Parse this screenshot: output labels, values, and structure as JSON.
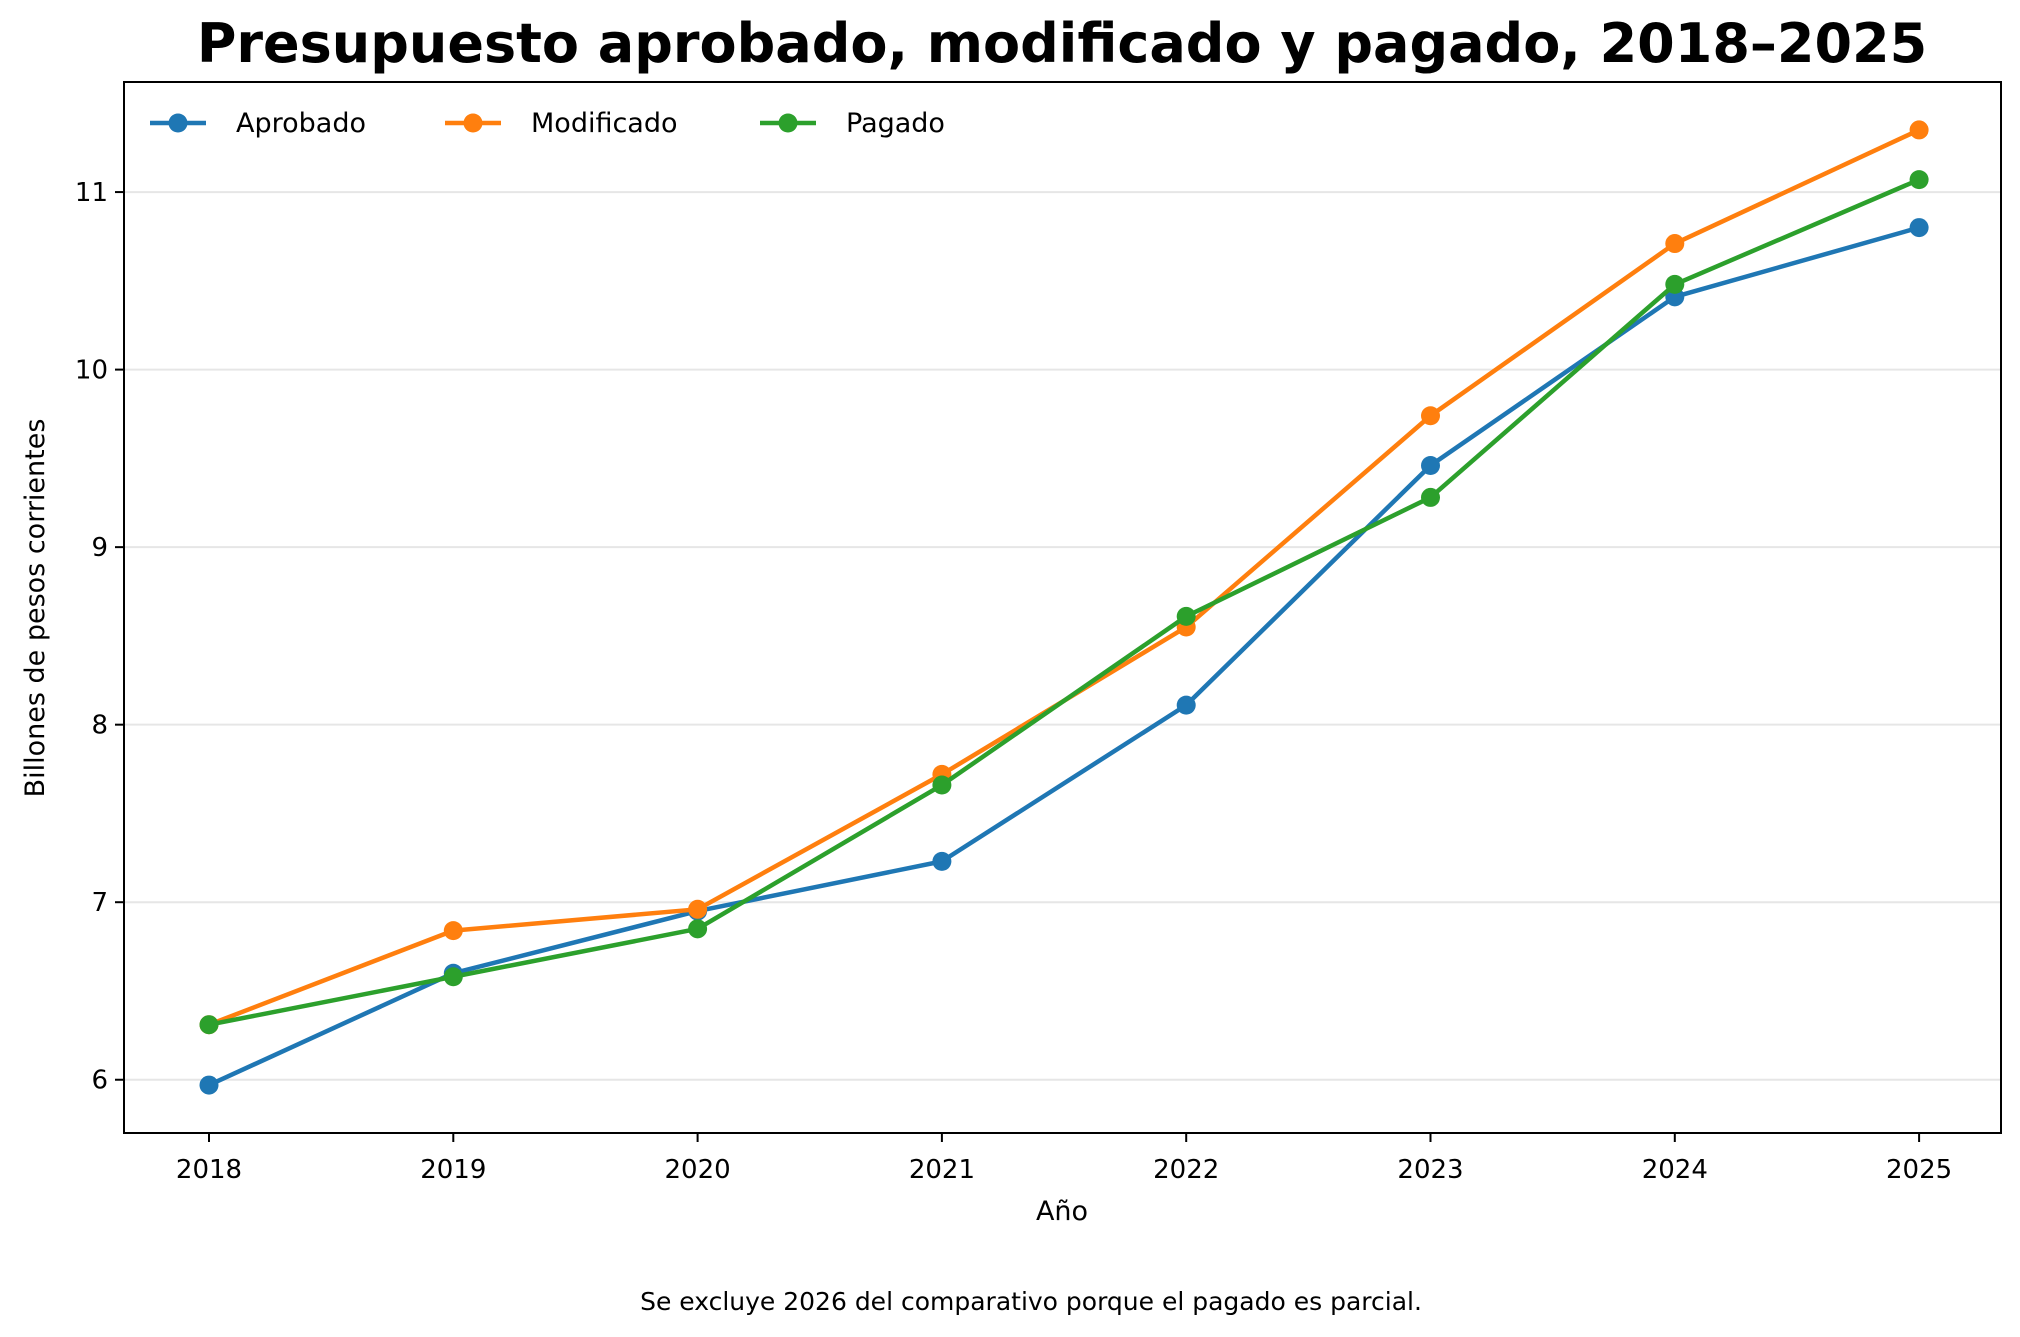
{
  "chart_data": {
    "type": "line",
    "title": "Presupuesto aprobado, modificado y pagado, 2018–2025",
    "xlabel": "Año",
    "ylabel": "Billones de pesos corrientes",
    "categories": [
      "2018",
      "2019",
      "2020",
      "2021",
      "2022",
      "2023",
      "2024",
      "2025"
    ],
    "yticks": [
      "6",
      "7",
      "8",
      "9",
      "10",
      "11"
    ],
    "ylim": [
      5.7,
      11.62
    ],
    "grid": "horizontal",
    "legend_position": "top-left",
    "series": [
      {
        "name": "Aprobado",
        "color": "#1f77b4",
        "values": [
          5.97,
          6.6,
          6.95,
          7.23,
          8.11,
          9.46,
          10.41,
          10.8
        ]
      },
      {
        "name": "Modificado",
        "color": "#ff7f0e",
        "values": [
          6.31,
          6.84,
          6.96,
          7.72,
          8.55,
          9.74,
          10.71,
          11.35
        ]
      },
      {
        "name": "Pagado",
        "color": "#2ca02c",
        "values": [
          6.31,
          6.58,
          6.85,
          7.66,
          8.61,
          9.28,
          10.48,
          11.07
        ]
      }
    ],
    "footnote": "Se excluye 2026 del comparativo porque el pagado es parcial."
  }
}
